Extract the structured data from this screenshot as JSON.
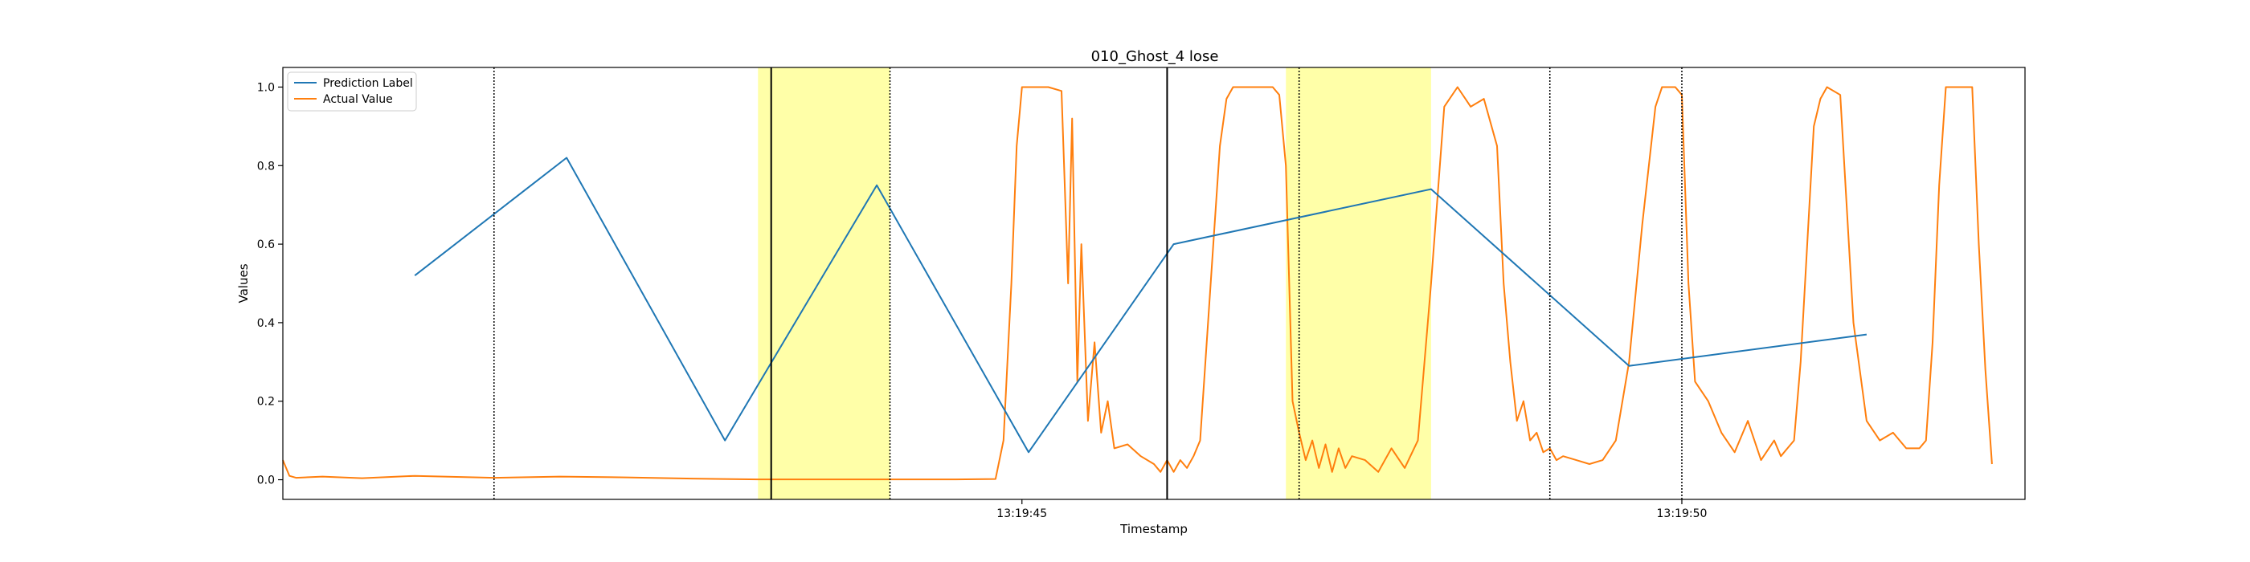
{
  "chart_data": {
    "type": "line",
    "title": "010_Ghost_4 lose",
    "xlabel": "Timestamp",
    "ylabel": "Values",
    "xlim": [
      -1.6,
      11.6
    ],
    "ylim": [
      -0.05,
      1.05
    ],
    "x_ticks": [
      {
        "value": 4.0,
        "label": "13:19:45"
      },
      {
        "value": 9.0,
        "label": "13:19:50"
      }
    ],
    "y_ticks": [
      0.0,
      0.2,
      0.4,
      0.6,
      0.8,
      1.0
    ],
    "grid": false,
    "legend_position": "upper-left",
    "series": [
      {
        "name": "Prediction Label",
        "color": "#1f77b4",
        "x": [
          -0.6,
          0.55,
          1.75,
          2.9,
          4.05,
          5.15,
          7.1,
          8.6,
          10.4
        ],
        "y": [
          0.52,
          0.82,
          0.1,
          0.75,
          0.07,
          0.6,
          0.74,
          0.29,
          0.37
        ]
      },
      {
        "name": "Actual Value",
        "color": "#ff7f0e",
        "x": [
          -1.6,
          -1.55,
          -1.5,
          -1.3,
          -1.0,
          -0.6,
          0.0,
          0.5,
          1.0,
          1.5,
          2.0,
          2.5,
          3.0,
          3.5,
          3.8,
          3.86,
          3.92,
          3.96,
          4.0,
          4.1,
          4.2,
          4.3,
          4.35,
          4.38,
          4.42,
          4.45,
          4.5,
          4.55,
          4.6,
          4.65,
          4.7,
          4.8,
          4.9,
          5.0,
          5.05,
          5.1,
          5.15,
          5.2,
          5.25,
          5.3,
          5.35,
          5.4,
          5.45,
          5.5,
          5.55,
          5.6,
          5.7,
          5.8,
          5.9,
          5.95,
          6.0,
          6.05,
          6.1,
          6.15,
          6.2,
          6.25,
          6.3,
          6.35,
          6.4,
          6.45,
          6.5,
          6.6,
          6.7,
          6.8,
          6.9,
          7.0,
          7.1,
          7.2,
          7.3,
          7.4,
          7.5,
          7.6,
          7.65,
          7.7,
          7.75,
          7.8,
          7.85,
          7.9,
          7.95,
          8.0,
          8.05,
          8.1,
          8.2,
          8.3,
          8.4,
          8.5,
          8.6,
          8.7,
          8.8,
          8.85,
          8.9,
          8.95,
          9.0,
          9.05,
          9.1,
          9.2,
          9.3,
          9.4,
          9.5,
          9.6,
          9.7,
          9.75,
          9.8,
          9.85,
          9.9,
          9.95,
          10.0,
          10.05,
          10.1,
          10.2,
          10.3,
          10.4,
          10.5,
          10.6,
          10.7,
          10.8,
          10.85,
          10.9,
          10.95,
          11.0,
          11.05,
          11.1,
          11.2,
          11.25,
          11.3,
          11.35
        ],
        "y": [
          0.05,
          0.01,
          0.005,
          0.008,
          0.004,
          0.01,
          0.005,
          0.008,
          0.006,
          0.003,
          0.001,
          0.001,
          0.001,
          0.001,
          0.002,
          0.1,
          0.5,
          0.85,
          1.0,
          1.0,
          1.0,
          0.99,
          0.5,
          0.92,
          0.25,
          0.6,
          0.15,
          0.35,
          0.12,
          0.2,
          0.08,
          0.09,
          0.06,
          0.04,
          0.02,
          0.05,
          0.02,
          0.05,
          0.03,
          0.06,
          0.1,
          0.35,
          0.6,
          0.85,
          0.97,
          1.0,
          1.0,
          1.0,
          1.0,
          0.98,
          0.8,
          0.2,
          0.12,
          0.05,
          0.1,
          0.03,
          0.09,
          0.02,
          0.08,
          0.03,
          0.06,
          0.05,
          0.02,
          0.08,
          0.03,
          0.1,
          0.5,
          0.95,
          1.0,
          0.95,
          0.97,
          0.85,
          0.5,
          0.3,
          0.15,
          0.2,
          0.1,
          0.12,
          0.07,
          0.08,
          0.05,
          0.06,
          0.05,
          0.04,
          0.05,
          0.1,
          0.3,
          0.65,
          0.95,
          1.0,
          1.0,
          1.0,
          0.98,
          0.5,
          0.25,
          0.2,
          0.12,
          0.07,
          0.15,
          0.05,
          0.1,
          0.06,
          0.08,
          0.1,
          0.3,
          0.6,
          0.9,
          0.97,
          1.0,
          0.98,
          0.4,
          0.15,
          0.1,
          0.12,
          0.08,
          0.08,
          0.1,
          0.35,
          0.75,
          1.0,
          1.0,
          1.0,
          1.0,
          0.6,
          0.28,
          0.04
        ]
      }
    ],
    "shaded_regions": [
      {
        "x_start": 2.0,
        "x_end": 3.0,
        "color": "#ffffa8"
      },
      {
        "x_start": 6.0,
        "x_end": 7.1,
        "color": "#ffffa8"
      }
    ],
    "vertical_lines": [
      {
        "x": 0.0,
        "style": "dotted"
      },
      {
        "x": 2.1,
        "style": "solid"
      },
      {
        "x": 3.0,
        "style": "dotted"
      },
      {
        "x": 5.1,
        "style": "solid"
      },
      {
        "x": 6.1,
        "style": "dotted"
      },
      {
        "x": 8.0,
        "style": "dotted"
      },
      {
        "x": 9.0,
        "style": "dotted"
      }
    ]
  }
}
